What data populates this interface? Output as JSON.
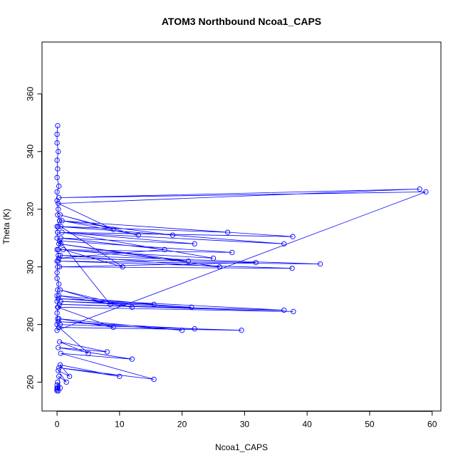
{
  "chart_data": {
    "type": "scatter",
    "title": "ATOM3 Northbound Ncoa1_CAPS",
    "xlabel": "Ncoa1_CAPS",
    "ylabel": "Theta (K)",
    "xlim": [
      -2.4,
      61.4
    ],
    "ylim": [
      250,
      378
    ],
    "xticks": [
      0,
      10,
      20,
      30,
      40,
      50,
      60
    ],
    "yticks": [
      260,
      280,
      300,
      320,
      340,
      360
    ],
    "grid": false,
    "legend": "none",
    "series_color": "#0000ff",
    "marker": "open-circle",
    "connected": true,
    "series": [
      {
        "x": [
          0.1,
          0.0,
          0.0,
          0.2,
          0.0,
          0.1,
          0.0,
          0.3,
          0.0,
          0.0,
          0.2,
          0.1,
          0.4,
          0.0,
          0.1,
          0.0,
          0.6,
          0.0,
          0.2,
          0.0,
          0.1,
          0.0,
          0.0,
          0.3,
          0.1,
          0.0,
          0.0,
          0.2,
          0.0,
          0.1,
          0.0,
          0.0,
          59.0,
          0.3,
          58.0,
          0.2,
          9.0,
          0.5,
          13.0,
          0.8,
          18.5,
          0.2,
          27.3,
          0.4,
          37.7,
          0.1,
          36.3,
          0.6,
          10.5,
          1.0,
          21.0,
          0.3,
          26.0,
          0.5,
          42.1,
          0.2,
          37.6,
          0.4,
          31.8,
          0.3,
          17.2,
          0.6,
          22.0,
          0.8,
          25.0,
          0.2,
          28.0,
          0.4,
          8.5,
          0.5,
          12.0,
          0.3,
          15.5,
          0.6,
          21.5,
          0.2,
          36.3,
          0.4,
          37.8,
          0.1,
          9.0,
          0.3,
          20.0,
          0.2,
          22.0,
          0.5,
          29.5,
          0.3,
          5.0,
          0.4,
          8.0,
          0.2,
          12.0,
          0.6,
          15.5,
          0.3,
          10.0,
          0.5,
          2.0,
          0.2,
          1.5,
          0.3,
          0.5,
          0.1,
          0.2,
          0.0,
          0.0,
          0.1,
          0.0,
          0.0
        ],
        "y": [
          349,
          346,
          343,
          340,
          337,
          334,
          331,
          328,
          326,
          323,
          320,
          318,
          316,
          314,
          312,
          310,
          308,
          306,
          304,
          302,
          300,
          298,
          296,
          294,
          292,
          290,
          288,
          286,
          284,
          282,
          280,
          278,
          326,
          324,
          327,
          322,
          313,
          318,
          311,
          316,
          311,
          314,
          312,
          316,
          310.5,
          312,
          308,
          314,
          300,
          306,
          302,
          308,
          300,
          304,
          301,
          302,
          299.5,
          300,
          301.5,
          303,
          306,
          310,
          308,
          312,
          303,
          306,
          305,
          309,
          287,
          292,
          286,
          290,
          287,
          288,
          286,
          289,
          285,
          287,
          284.5,
          286,
          279,
          282,
          278,
          281,
          278.5,
          280,
          278,
          279,
          270,
          274,
          270.5,
          272,
          268,
          270,
          261,
          265,
          262,
          266,
          262,
          264,
          260,
          262,
          258,
          260,
          257,
          259,
          257,
          258,
          257.5,
          258
        ]
      }
    ]
  }
}
